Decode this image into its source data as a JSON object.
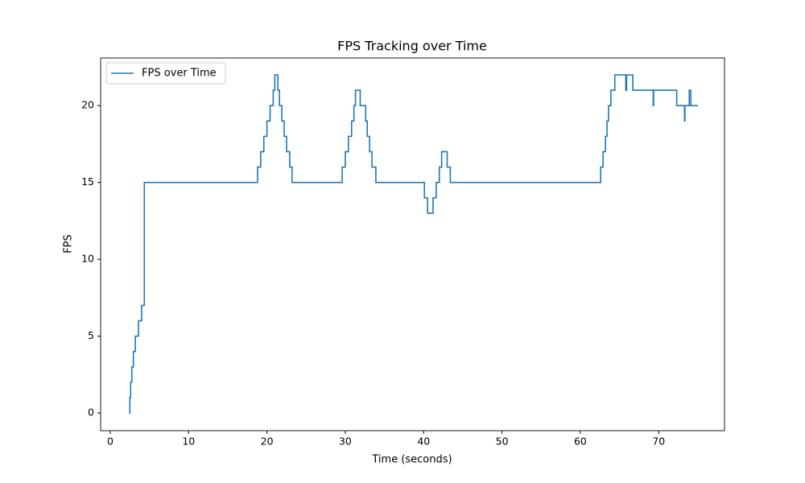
{
  "chart_data": {
    "type": "line",
    "title": "FPS Tracking over Time",
    "x_label": "Time (seconds)",
    "y_label": "FPS",
    "drawstyle": "steps-post",
    "legend": "upper left",
    "grid": false,
    "xlim": [
      -1.23,
      78.4
    ],
    "ylim": [
      -1.15,
      23.1
    ],
    "xticks": [
      0,
      10,
      20,
      30,
      40,
      50,
      60,
      70
    ],
    "yticks": [
      0,
      5,
      10,
      15,
      20
    ],
    "x": [
      2.4,
      2.5,
      2.6,
      2.75,
      2.95,
      3.2,
      3.6,
      4.0,
      4.35,
      18.8,
      19.2,
      19.6,
      20.0,
      20.4,
      20.8,
      21.0,
      21.4,
      21.6,
      21.9,
      22.2,
      22.5,
      22.9,
      23.2,
      29.6,
      30.0,
      30.4,
      30.8,
      31.1,
      31.3,
      31.9,
      32.6,
      32.8,
      33.1,
      33.4,
      33.9,
      40.1,
      40.5,
      41.2,
      41.6,
      42.0,
      42.3,
      43.0,
      43.4,
      62.6,
      62.9,
      63.2,
      63.4,
      63.6,
      63.9,
      64.4,
      65.8,
      65.9,
      66.7,
      69.3,
      69.35,
      72.3,
      73.3,
      73.35,
      73.9,
      74.1,
      75.0
    ],
    "series": [
      {
        "name": "FPS over Time",
        "color": "#1f77b4",
        "values": [
          0,
          1,
          2,
          3,
          4,
          5,
          6,
          7,
          15,
          16,
          17,
          18,
          19,
          20,
          21,
          22,
          21,
          20,
          19,
          18,
          17,
          16,
          15,
          16,
          17,
          18,
          19,
          20,
          21,
          20,
          19,
          18,
          17,
          16,
          15,
          14,
          13,
          14,
          15,
          16,
          17,
          16,
          15,
          16,
          17,
          18,
          19,
          20,
          21,
          22,
          21,
          22,
          21,
          20,
          21,
          20,
          19,
          20,
          21,
          20,
          20
        ]
      }
    ]
  }
}
